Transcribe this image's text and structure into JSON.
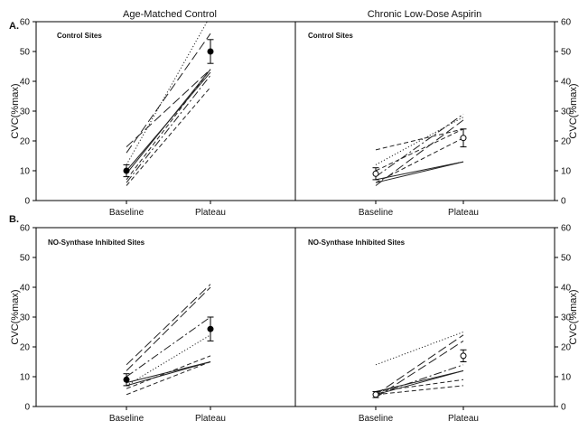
{
  "figure": {
    "column_titles": [
      "Age-Matched Control",
      "Chronic Low-Dose Aspirin"
    ],
    "panel_letters": [
      "A.",
      "B."
    ],
    "ylabel": "CVC(%max)"
  },
  "chart_data": [
    {
      "type": "line",
      "panel": "A",
      "column": "Age-Matched Control",
      "site_label": "Control Sites",
      "categories": [
        "Baseline",
        "Plateau"
      ],
      "ylim": [
        0,
        60
      ],
      "yticks": [
        0,
        10,
        20,
        30,
        40,
        50,
        60
      ],
      "individuals": [
        {
          "style": "solid",
          "values": [
            10,
            43
          ]
        },
        {
          "style": "solid",
          "values": [
            9,
            44
          ]
        },
        {
          "style": "dotted",
          "values": [
            12,
            62
          ]
        },
        {
          "style": "long-dash",
          "values": [
            16,
            56
          ]
        },
        {
          "style": "long-dash",
          "values": [
            18,
            44
          ]
        },
        {
          "style": "dash",
          "values": [
            7,
            44
          ]
        },
        {
          "style": "dash",
          "values": [
            5,
            38
          ]
        },
        {
          "style": "dash-dot",
          "values": [
            6,
            42
          ]
        }
      ],
      "mean": {
        "marker": "filled",
        "values": [
          10,
          50
        ],
        "error": [
          2,
          4
        ]
      }
    },
    {
      "type": "line",
      "panel": "A",
      "column": "Chronic Low-Dose Aspirin",
      "site_label": "Control Sites",
      "categories": [
        "Baseline",
        "Plateau"
      ],
      "ylim": [
        0,
        60
      ],
      "yticks": [
        0,
        10,
        20,
        30,
        40,
        50,
        60
      ],
      "individuals": [
        {
          "style": "solid",
          "values": [
            7,
            13
          ]
        },
        {
          "style": "solid",
          "values": [
            6,
            13
          ]
        },
        {
          "style": "dotted",
          "values": [
            12,
            28
          ]
        },
        {
          "style": "dash",
          "values": [
            17,
            24
          ]
        },
        {
          "style": "long-dash",
          "values": [
            5,
            27
          ]
        },
        {
          "style": "dash",
          "values": [
            6,
            21
          ]
        },
        {
          "style": "dash-dot",
          "values": [
            8,
            29
          ]
        },
        {
          "style": "dash",
          "values": [
            10,
            24
          ]
        }
      ],
      "mean": {
        "marker": "open",
        "values": [
          9,
          21
        ],
        "error": [
          2,
          3
        ]
      }
    },
    {
      "type": "line",
      "panel": "B",
      "column": "Age-Matched Control",
      "site_label": "NO-Synthase Inhibited Sites",
      "categories": [
        "Baseline",
        "Plateau"
      ],
      "ylim": [
        0,
        60
      ],
      "yticks": [
        0,
        10,
        20,
        30,
        40,
        50,
        60
      ],
      "individuals": [
        {
          "style": "solid",
          "values": [
            8,
            15
          ]
        },
        {
          "style": "solid",
          "values": [
            7,
            15
          ]
        },
        {
          "style": "dotted",
          "values": [
            7,
            24
          ]
        },
        {
          "style": "long-dash",
          "values": [
            14,
            41
          ]
        },
        {
          "style": "long-dash",
          "values": [
            12,
            40
          ]
        },
        {
          "style": "dash",
          "values": [
            6,
            17
          ]
        },
        {
          "style": "dash",
          "values": [
            4,
            15
          ]
        },
        {
          "style": "dash-dot",
          "values": [
            10,
            30
          ]
        }
      ],
      "mean": {
        "marker": "filled",
        "values": [
          9,
          26
        ],
        "error": [
          2,
          4
        ]
      }
    },
    {
      "type": "line",
      "panel": "B",
      "column": "Chronic Low-Dose Aspirin",
      "site_label": "NO-Synthase Inhibited Sites",
      "categories": [
        "Baseline",
        "Plateau"
      ],
      "ylim": [
        0,
        60
      ],
      "yticks": [
        0,
        10,
        20,
        30,
        40,
        50,
        60
      ],
      "individuals": [
        {
          "style": "solid",
          "values": [
            5,
            12
          ]
        },
        {
          "style": "solid",
          "values": [
            4,
            12
          ]
        },
        {
          "style": "dotted",
          "values": [
            14,
            25
          ]
        },
        {
          "style": "long-dash",
          "values": [
            4,
            24
          ]
        },
        {
          "style": "long-dash",
          "values": [
            3,
            22
          ]
        },
        {
          "style": "dash",
          "values": [
            5,
            9
          ]
        },
        {
          "style": "dash",
          "values": [
            4,
            7
          ]
        },
        {
          "style": "dash-dot",
          "values": [
            4,
            14
          ]
        }
      ],
      "mean": {
        "marker": "open",
        "values": [
          4,
          17
        ],
        "error": [
          1,
          2
        ]
      }
    }
  ]
}
